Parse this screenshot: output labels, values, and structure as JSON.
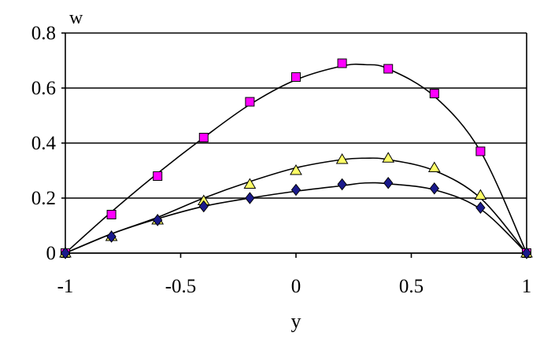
{
  "chart_data": {
    "type": "scatter",
    "title": "",
    "xlabel": "y",
    "ylabel": "w",
    "xlim": [
      -1,
      1
    ],
    "ylim": [
      0,
      0.8
    ],
    "x_ticks": [
      -1,
      -0.5,
      0,
      0.5,
      1
    ],
    "x_tick_labels": [
      "-1",
      "-0.5",
      "0",
      "0.5",
      "1"
    ],
    "y_ticks": [
      0,
      0.2,
      0.4,
      0.6,
      0.8
    ],
    "y_tick_labels": [
      "0",
      "0.2",
      "0.4",
      "0.6",
      "0.8"
    ],
    "grid": "horizontal",
    "legend": "none",
    "series": [
      {
        "marker": "square",
        "color": "#ff00ff",
        "x": [
          -1,
          -0.8,
          -0.6,
          -0.4,
          -0.2,
          0,
          0.2,
          0.4,
          0.6,
          0.8,
          1
        ],
        "y": [
          0.0,
          0.14,
          0.28,
          0.42,
          0.55,
          0.64,
          0.69,
          0.67,
          0.58,
          0.37,
          0.0
        ],
        "curve_x": [
          -1,
          -0.8,
          -0.6,
          -0.4,
          -0.2,
          0,
          0.2,
          0.3,
          0.4,
          0.6,
          0.8,
          1
        ],
        "curve_y": [
          0.0,
          0.15,
          0.29,
          0.42,
          0.54,
          0.63,
          0.68,
          0.685,
          0.67,
          0.57,
          0.37,
          0.0
        ]
      },
      {
        "marker": "triangle",
        "color": "#ffff66",
        "x": [
          -1,
          -0.8,
          -0.6,
          -0.4,
          -0.2,
          0,
          0.2,
          0.4,
          0.6,
          0.8,
          1
        ],
        "y": [
          0.0,
          0.06,
          0.12,
          0.19,
          0.25,
          0.3,
          0.34,
          0.345,
          0.31,
          0.21,
          0.0
        ],
        "curve_x": [
          -1,
          -0.8,
          -0.6,
          -0.4,
          -0.2,
          0,
          0.2,
          0.3,
          0.4,
          0.6,
          0.8,
          1
        ],
        "curve_y": [
          0.0,
          0.07,
          0.13,
          0.2,
          0.26,
          0.31,
          0.34,
          0.345,
          0.34,
          0.3,
          0.2,
          0.0
        ]
      },
      {
        "marker": "diamond",
        "color": "#1a1a8c",
        "x": [
          -1,
          -0.8,
          -0.6,
          -0.4,
          -0.2,
          0,
          0.2,
          0.4,
          0.6,
          0.8,
          1
        ],
        "y": [
          0.0,
          0.06,
          0.12,
          0.17,
          0.2,
          0.23,
          0.25,
          0.255,
          0.235,
          0.165,
          0.0
        ],
        "curve_x": [
          -1,
          -0.8,
          -0.6,
          -0.4,
          -0.2,
          0,
          0.2,
          0.3,
          0.4,
          0.6,
          0.8,
          1
        ],
        "curve_y": [
          0.0,
          0.07,
          0.125,
          0.17,
          0.2,
          0.225,
          0.245,
          0.255,
          0.252,
          0.23,
          0.16,
          0.0
        ]
      }
    ]
  }
}
